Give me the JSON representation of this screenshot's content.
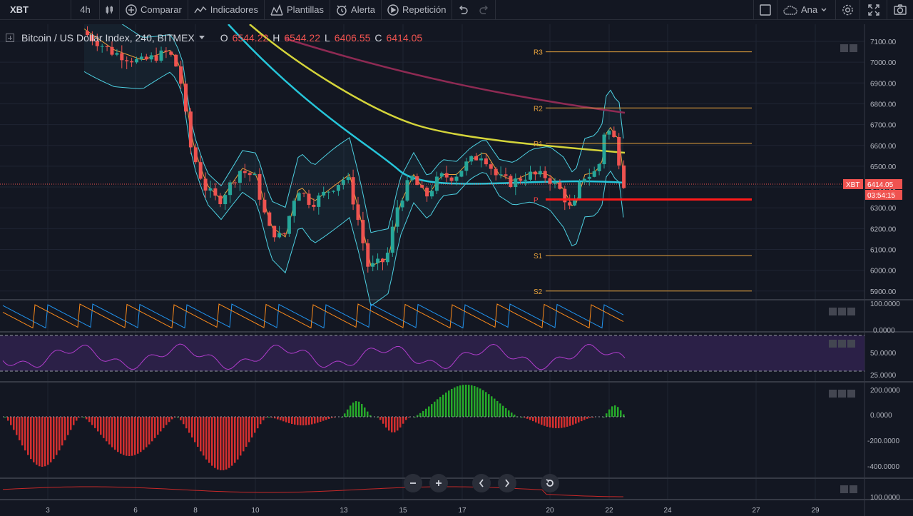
{
  "toolbar": {
    "symbol": "XBT",
    "interval": "4h",
    "compare_label": "Comparar",
    "indicators_label": "Indicadores",
    "templates_label": "Plantillas",
    "alert_label": "Alerta",
    "replay_label": "Repetición",
    "layout_name": "Ana"
  },
  "legend": {
    "title": "Bitcoin / US Dollar Index, 240, BITMEX",
    "o_label": "O",
    "o_value": "6544.22",
    "h_label": "H",
    "h_value": "6544.22",
    "l_label": "L",
    "l_value": "6406.55",
    "c_label": "C",
    "c_value": "6414.05"
  },
  "price_axis": [
    "7100.00",
    "7000.00",
    "6900.00",
    "6800.00",
    "6700.00",
    "6600.00",
    "6500.00",
    "6400.00",
    "6300.00",
    "6200.00",
    "6100.00",
    "6000.00",
    "5900.00"
  ],
  "price_tag": {
    "symbol": "XBT",
    "price": "6414.05",
    "countdown": "03:54:15"
  },
  "pivots": [
    "R3",
    "R2",
    "R1",
    "P",
    "S1",
    "S2"
  ],
  "stoch_axis": [
    "100.0000",
    "0.0000"
  ],
  "rsi_axis": [
    "50.0000",
    "25.0000"
  ],
  "macd_axis": [
    "200.0000",
    "0.0000",
    "-200.0000",
    "-400.0000"
  ],
  "bottom_axis": [
    "100.0000"
  ],
  "time_axis": [
    "3",
    "6",
    "8",
    "10",
    "13",
    "15",
    "17",
    "20",
    "22",
    "24",
    "27",
    "29"
  ],
  "colors": {
    "bg": "#131722",
    "up": "#26a69a",
    "down": "#ef5350",
    "bb": "#4dd0e1",
    "ema": "#d4d43a",
    "sma": "#8e2a53"
  }
}
